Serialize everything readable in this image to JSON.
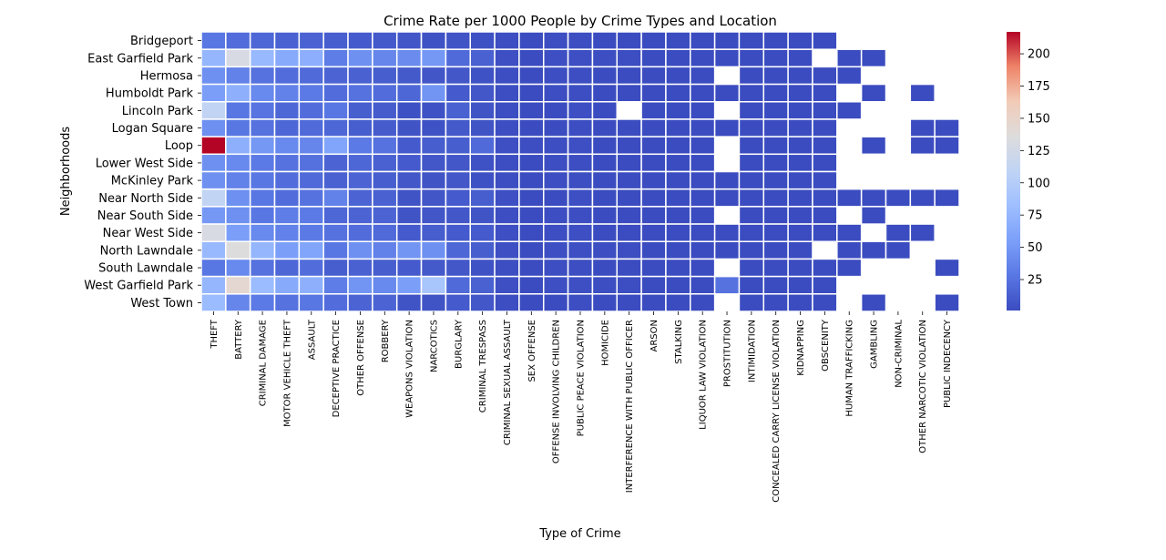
{
  "chart_data": {
    "type": "heatmap",
    "title": "Crime Rate per 1000 People by Crime Types and Location",
    "xlabel": "Type of Crime",
    "ylabel": "Neighborhoods",
    "columns": [
      "THEFT",
      "BATTERY",
      "CRIMINAL DAMAGE",
      "MOTOR VEHICLE THEFT",
      "ASSAULT",
      "DECEPTIVE PRACTICE",
      "OTHER OFFENSE",
      "ROBBERY",
      "WEAPONS VIOLATION",
      "NARCOTICS",
      "BURGLARY",
      "CRIMINAL TRESPASS",
      "CRIMINAL SEXUAL ASSAULT",
      "SEX OFFENSE",
      "OFFENSE INVOLVING CHILDREN",
      "PUBLIC PEACE VIOLATION",
      "HOMICIDE",
      "INTERFERENCE WITH PUBLIC OFFICER",
      "ARSON",
      "STALKING",
      "LIQUOR LAW VIOLATION",
      "PROSTITUTION",
      "INTIMIDATION",
      "CONCEALED CARRY LICENSE VIOLATION",
      "KIDNAPPING",
      "OBSCENITY",
      "HUMAN TRAFFICKING",
      "GAMBLING",
      "NON-CRIMINAL",
      "OTHER NARCOTIC VIOLATION",
      "PUBLIC INDECENCY"
    ],
    "rows": [
      "Bridgeport",
      "East Garfield Park",
      "Hermosa",
      "Humboldt Park",
      "Lincoln Park",
      "Logan Square",
      "Loop",
      "Lower West Side",
      "McKinley Park",
      "Near North Side",
      "Near South Side",
      "Near West Side",
      "North Lawndale",
      "South Lawndale",
      "West Garfield Park",
      "West Town"
    ],
    "values": [
      [
        28,
        22,
        18,
        14,
        15,
        12,
        10,
        9,
        7,
        5,
        6,
        4,
        2,
        1,
        2,
        2,
        1,
        1,
        1,
        1,
        1,
        1,
        1,
        1,
        1,
        1,
        null,
        null,
        null,
        null,
        null
      ],
      [
        75,
        130,
        78,
        65,
        68,
        32,
        45,
        38,
        42,
        50,
        20,
        14,
        3,
        1,
        3,
        3,
        2,
        2,
        1,
        1,
        1,
        1,
        1,
        1,
        1,
        null,
        1,
        1,
        null,
        null,
        null
      ],
      [
        45,
        35,
        25,
        22,
        20,
        16,
        14,
        12,
        9,
        7,
        8,
        5,
        2,
        1,
        2,
        2,
        1,
        1,
        1,
        1,
        1,
        null,
        1,
        1,
        1,
        1,
        1,
        null,
        null,
        null,
        null
      ],
      [
        55,
        70,
        40,
        35,
        30,
        22,
        25,
        22,
        18,
        48,
        10,
        8,
        2,
        1,
        2,
        2,
        1,
        1,
        1,
        1,
        1,
        1,
        1,
        1,
        1,
        1,
        null,
        1,
        null,
        1,
        null
      ],
      [
        110,
        28,
        26,
        18,
        22,
        28,
        12,
        11,
        4,
        5,
        14,
        6,
        2,
        1,
        1,
        3,
        1,
        null,
        1,
        1,
        1,
        null,
        1,
        1,
        1,
        1,
        1,
        null,
        null,
        null,
        null
      ],
      [
        45,
        28,
        25,
        18,
        20,
        18,
        12,
        11,
        6,
        5,
        9,
        6,
        2,
        1,
        1,
        2,
        1,
        1,
        1,
        1,
        1,
        1,
        1,
        1,
        1,
        1,
        null,
        null,
        null,
        1,
        1
      ],
      [
        217,
        70,
        50,
        40,
        38,
        60,
        30,
        25,
        10,
        12,
        12,
        20,
        3,
        2,
        2,
        3,
        1,
        1,
        1,
        1,
        1,
        null,
        1,
        1,
        1,
        1,
        null,
        1,
        null,
        1,
        1
      ],
      [
        45,
        40,
        30,
        25,
        24,
        16,
        18,
        14,
        10,
        8,
        8,
        5,
        2,
        1,
        2,
        2,
        1,
        1,
        1,
        1,
        1,
        null,
        1,
        1,
        1,
        1,
        null,
        null,
        null,
        null,
        null
      ],
      [
        45,
        35,
        28,
        22,
        20,
        14,
        16,
        12,
        8,
        6,
        8,
        4,
        2,
        1,
        2,
        2,
        1,
        1,
        1,
        1,
        1,
        1,
        1,
        1,
        1,
        1,
        null,
        null,
        null,
        null,
        null
      ],
      [
        110,
        45,
        28,
        22,
        25,
        35,
        16,
        14,
        6,
        7,
        10,
        12,
        3,
        1,
        1,
        3,
        1,
        1,
        1,
        1,
        1,
        1,
        1,
        1,
        1,
        1,
        1,
        1,
        1,
        1,
        1
      ],
      [
        50,
        45,
        28,
        32,
        30,
        18,
        16,
        16,
        6,
        7,
        8,
        6,
        2,
        1,
        2,
        2,
        1,
        1,
        1,
        1,
        1,
        null,
        1,
        1,
        1,
        1,
        null,
        1,
        null,
        null,
        null
      ],
      [
        130,
        55,
        40,
        35,
        30,
        25,
        22,
        20,
        10,
        12,
        10,
        10,
        3,
        1,
        2,
        3,
        1,
        1,
        1,
        1,
        1,
        1,
        1,
        1,
        1,
        1,
        1,
        null,
        1,
        1,
        null
      ],
      [
        78,
        135,
        75,
        55,
        60,
        28,
        45,
        35,
        48,
        45,
        18,
        12,
        3,
        1,
        3,
        3,
        2,
        2,
        1,
        1,
        1,
        1,
        1,
        1,
        1,
        null,
        1,
        1,
        1,
        null,
        null
      ],
      [
        28,
        40,
        25,
        18,
        22,
        12,
        14,
        12,
        10,
        9,
        8,
        5,
        2,
        1,
        2,
        2,
        1,
        1,
        1,
        1,
        1,
        null,
        1,
        1,
        1,
        1,
        1,
        null,
        null,
        null,
        1
      ],
      [
        75,
        145,
        80,
        65,
        70,
        32,
        48,
        40,
        55,
        90,
        20,
        14,
        3,
        1,
        3,
        3,
        2,
        2,
        1,
        1,
        1,
        25,
        1,
        1,
        1,
        1,
        null,
        null,
        null,
        null,
        null
      ],
      [
        80,
        38,
        30,
        25,
        28,
        22,
        16,
        16,
        6,
        6,
        10,
        8,
        2,
        1,
        1,
        2,
        1,
        1,
        1,
        1,
        1,
        null,
        1,
        1,
        1,
        1,
        null,
        1,
        null,
        null,
        1
      ]
    ],
    "colormap": "coolwarm",
    "vmin": 1,
    "vmax": 217,
    "colorbar_ticks": [
      25,
      50,
      75,
      100,
      125,
      150,
      175,
      200
    ],
    "colorbar_labels": [
      "25",
      "50",
      "75",
      "100",
      "125",
      "150",
      "175",
      "200"
    ],
    "grid": true,
    "legend": "colorbar right"
  }
}
